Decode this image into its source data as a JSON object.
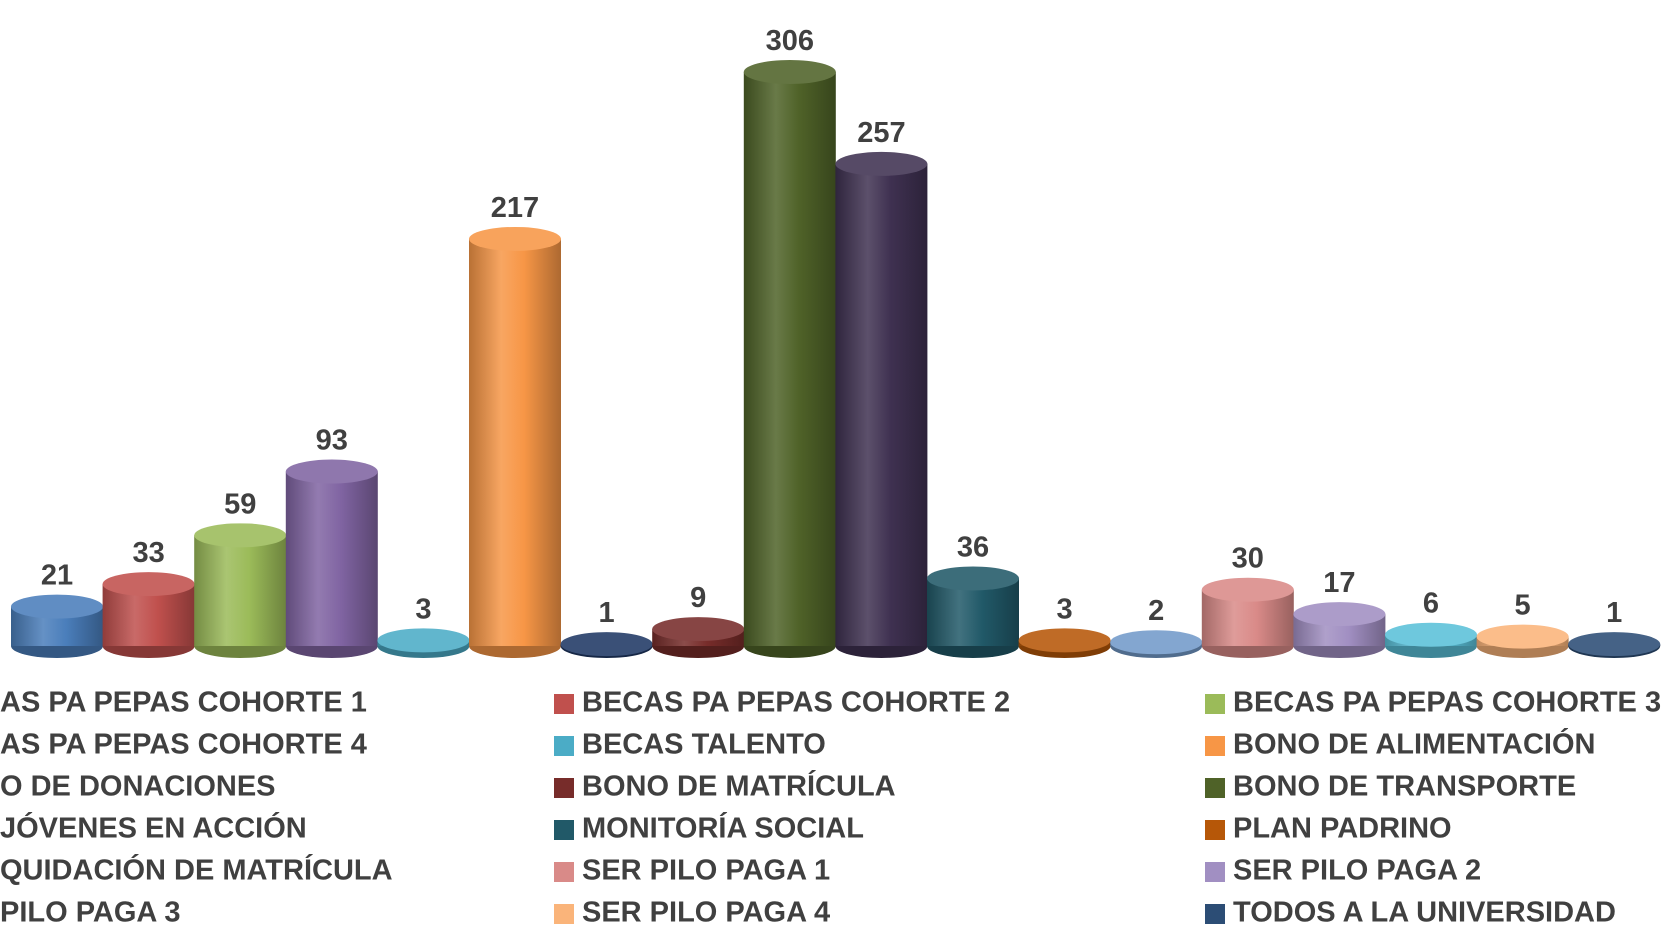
{
  "chart_data": {
    "type": "cylinder-bar",
    "series": [
      {
        "name": "AS PA PEPAS COHORTE 1",
        "color": "#4a7ebb",
        "values": [
          21
        ]
      },
      {
        "name": "BECAS PA PEPAS COHORTE 2",
        "color": "#c0504d",
        "values": [
          33
        ]
      },
      {
        "name": "BECAS PA PEPAS COHORTE 3",
        "color": "#9bbb59",
        "values": [
          59
        ]
      },
      {
        "name": "AS PA PEPAS COHORTE 4",
        "color": "#8064a2",
        "values": [
          93
        ]
      },
      {
        "name": "BECAS TALENTO",
        "color": "#4bacc6",
        "values": [
          3
        ]
      },
      {
        "name": "BONO DE ALIMENTACIÓN",
        "color": "#f79646",
        "values": [
          217
        ]
      },
      {
        "name": "O DE DONACIONES",
        "color": "#1f3864",
        "values": [
          1
        ]
      },
      {
        "name": "BONO DE MATRÍCULA",
        "color": "#772c2a",
        "values": [
          9
        ]
      },
      {
        "name": "BONO DE TRANSPORTE",
        "color": "#4f6228",
        "values": [
          306
        ]
      },
      {
        "name": "JÓVENES EN ACCIÓN",
        "color": "#3f3151",
        "values": [
          257
        ]
      },
      {
        "name": "MONITORÍA SOCIAL",
        "color": "#215968",
        "values": [
          36
        ]
      },
      {
        "name": "PLAN PADRINO",
        "color": "#b65708",
        "values": [
          3
        ]
      },
      {
        "name": "QUIDACIÓN DE MATRÍCULA",
        "color": "#729aca",
        "values": [
          2
        ]
      },
      {
        "name": "SER PILO PAGA 1",
        "color": "#d98a88",
        "values": [
          30
        ]
      },
      {
        "name": "SER PILO PAGA 2",
        "color": "#a18fc2",
        "values": [
          17
        ]
      },
      {
        "name": "PILO PAGA 3",
        "color": "#5ac0d8",
        "values": [
          6
        ]
      },
      {
        "name": "SER PILO PAGA 4",
        "color": "#fab47a",
        "values": [
          5
        ]
      },
      {
        "name": "TODOS A LA UNIVERSIDAD",
        "color": "#2c4d75",
        "values": [
          1
        ]
      }
    ],
    "legend": "bottom"
  }
}
